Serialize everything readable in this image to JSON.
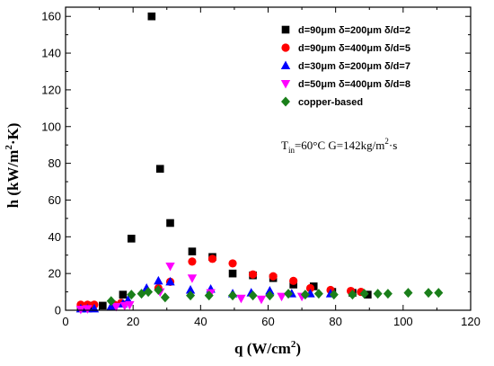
{
  "chart_data": {
    "type": "scatter",
    "xlabel": "q (W/cm",
    "xlabel_sup": "2",
    "xlabel_end": ")",
    "ylabel": "h (kW/m",
    "ylabel_sup": "2",
    "ylabel_end": "·K)",
    "xlim": [
      0,
      120
    ],
    "ylim": [
      0,
      165
    ],
    "x_ticks": [
      0,
      20,
      40,
      60,
      80,
      100,
      120
    ],
    "y_ticks": [
      0,
      20,
      40,
      60,
      80,
      100,
      120,
      140,
      160
    ],
    "x_tick_labels": [
      "0",
      "20",
      "40",
      "60",
      "80",
      "100",
      "120"
    ],
    "y_tick_labels": [
      "0",
      "20",
      "40",
      "60",
      "80",
      "100",
      "120",
      "140",
      "160"
    ],
    "grid": false,
    "legend_position": "top-right",
    "annotation": {
      "prefix": "T",
      "sub": "in",
      "mid": "=60°C   G=142kg/m",
      "sup": "2",
      "end": "·s"
    },
    "series": [
      {
        "name": "d=90μm  δ=200μm  δ/d=2",
        "marker": "square",
        "color": "#000000",
        "points": [
          [
            4.5,
            1.5
          ],
          [
            7.5,
            2.5
          ],
          [
            11,
            2.5
          ],
          [
            17,
            8.5
          ],
          [
            19.5,
            39
          ],
          [
            25.5,
            160
          ],
          [
            28,
            77
          ],
          [
            31,
            47.5
          ],
          [
            37.5,
            32
          ],
          [
            43.5,
            29
          ],
          [
            49.5,
            20
          ],
          [
            55.5,
            19
          ],
          [
            61.5,
            17.5
          ],
          [
            67.5,
            14
          ],
          [
            73.5,
            13
          ],
          [
            79,
            10
          ],
          [
            85,
            9.5
          ],
          [
            89.5,
            8.5
          ]
        ]
      },
      {
        "name": "d=90μm  δ=400μm  δ/d=5",
        "marker": "circle",
        "color": "#ff0000",
        "points": [
          [
            4.5,
            3
          ],
          [
            6.5,
            3
          ],
          [
            8.5,
            3
          ],
          [
            14.5,
            3
          ],
          [
            16.5,
            4
          ],
          [
            27.5,
            12
          ],
          [
            31,
            15.5
          ],
          [
            37.5,
            26.5
          ],
          [
            43.5,
            28
          ],
          [
            49.5,
            25.5
          ],
          [
            55.5,
            19.5
          ],
          [
            61.5,
            18.5
          ],
          [
            67.5,
            16
          ],
          [
            72.5,
            12
          ],
          [
            78.5,
            11
          ],
          [
            84.5,
            10.5
          ],
          [
            87.5,
            10
          ]
        ]
      },
      {
        "name": "d=30μm  δ=200μm  δ/d=7",
        "marker": "triangle-up",
        "color": "#0000ff",
        "points": [
          [
            4.5,
            0.8
          ],
          [
            6.5,
            0.8
          ],
          [
            8.5,
            0.8
          ],
          [
            13.5,
            2
          ],
          [
            17,
            3.5
          ],
          [
            18.5,
            5.5
          ],
          [
            24,
            12
          ],
          [
            27.5,
            16
          ],
          [
            31,
            15.5
          ],
          [
            37,
            11
          ],
          [
            43,
            11.5
          ],
          [
            49.5,
            9
          ],
          [
            55,
            9.5
          ],
          [
            60.5,
            10.5
          ],
          [
            67,
            9
          ],
          [
            72.5,
            9
          ],
          [
            78.5,
            9
          ]
        ]
      },
      {
        "name": "d=50μm  δ=400μm  δ/d=8",
        "marker": "triangle-down",
        "color": "#ff00ff",
        "points": [
          [
            4.5,
            0.5
          ],
          [
            6.5,
            0.8
          ],
          [
            15,
            2
          ],
          [
            17.5,
            2.5
          ],
          [
            19,
            3
          ],
          [
            28,
            10
          ],
          [
            31,
            24
          ],
          [
            37.5,
            17.5
          ],
          [
            43,
            9.5
          ],
          [
            52,
            6.5
          ],
          [
            58,
            6
          ],
          [
            64,
            7.5
          ],
          [
            70,
            7.5
          ]
        ]
      },
      {
        "name": "copper-based",
        "marker": "diamond",
        "color": "#1a7f1a",
        "points": [
          [
            13.5,
            5
          ],
          [
            19.5,
            8.5
          ],
          [
            22.5,
            9
          ],
          [
            24.5,
            10
          ],
          [
            27.5,
            11
          ],
          [
            29.5,
            7
          ],
          [
            37,
            8
          ],
          [
            42.5,
            8
          ],
          [
            49.5,
            8
          ],
          [
            55.5,
            8
          ],
          [
            60.5,
            8
          ],
          [
            66,
            9
          ],
          [
            71,
            8.5
          ],
          [
            75,
            9
          ],
          [
            79.5,
            8.5
          ],
          [
            85,
            8.5
          ],
          [
            88.5,
            9
          ],
          [
            92.5,
            9
          ],
          [
            95.5,
            9
          ],
          [
            101.5,
            9.5
          ],
          [
            107.5,
            9.5
          ],
          [
            110.5,
            9.5
          ]
        ]
      }
    ]
  }
}
